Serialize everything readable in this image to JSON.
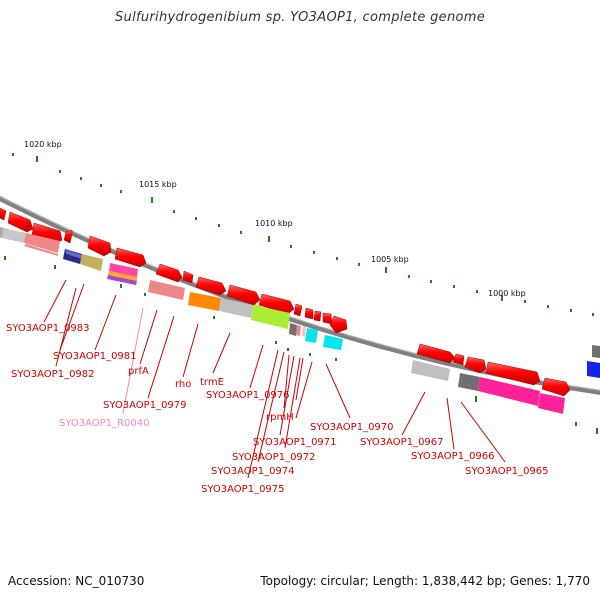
{
  "title": "Sulfurihydrogenibium sp. YO3AOP1, complete genome",
  "footer": {
    "accession": "Accession: NC_010730",
    "summary": "Topology: circular; Length: 1,838,442 bp; Genes: 1,770"
  },
  "scale_labels": [
    "1020 kbp",
    "1015 kbp",
    "1010 kbp",
    "1005 kbp",
    "1000 kbp"
  ],
  "colors": {
    "backbone": "#808080",
    "gene_label": "#cc0000",
    "rna_label": "#ee88bb",
    "tick": "#2a7a2a",
    "forward_gene": "#ff0000"
  },
  "gene_labels": [
    "SYO3AOP1_0983",
    "SYO3AOP1_0981",
    "SYO3AOP1_0982",
    "prfA",
    "SYO3AOP1_0979",
    "SYO3AOP1_R0040",
    "rho",
    "trmE",
    "SYO3AOP1_0976",
    "rpmH",
    "SYO3AOP1_0971",
    "SYO3AOP1_0972",
    "SYO3AOP1_0974",
    "SYO3AOP1_0975",
    "SYO3AOP1_0970",
    "SYO3AOP1_0967",
    "SYO3AOP1_0966",
    "SYO3AOP1_0965"
  ]
}
